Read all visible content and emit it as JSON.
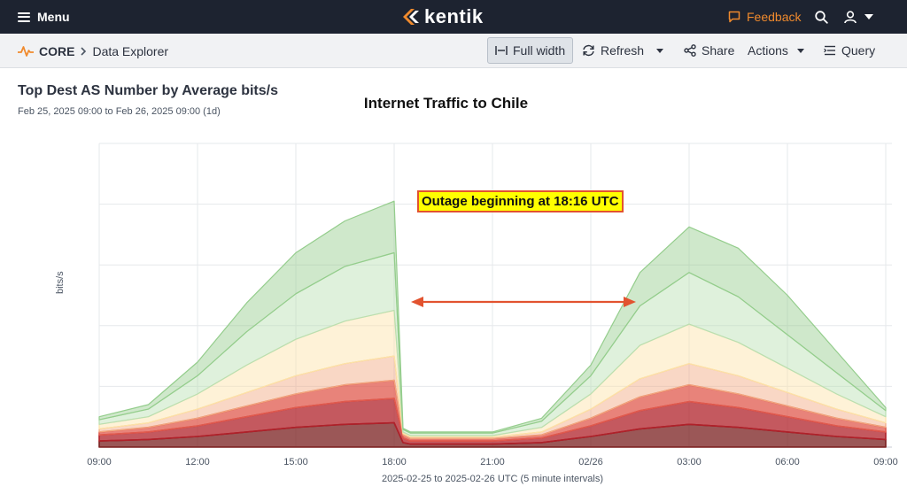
{
  "topbar": {
    "menu_label": "Menu",
    "brand": "kentik",
    "feedback_label": "Feedback",
    "icons": [
      "menu-icon",
      "kentik-logo-icon",
      "feedback-icon",
      "search-icon",
      "user-icon",
      "chevron-down-icon"
    ]
  },
  "subbar": {
    "breadcrumb_root": "CORE",
    "breadcrumb_current": "Data Explorer",
    "full_width_label": "Full width",
    "refresh_label": "Refresh",
    "share_label": "Share",
    "actions_label": "Actions",
    "query_label": "Query"
  },
  "panel": {
    "title": "Top Dest AS Number by Average bits/s",
    "time_range": "Feb 25, 2025 09:00 to Feb 26, 2025 09:00 (1d)"
  },
  "annotation": {
    "overlay_title": "Internet Traffic to Chile",
    "callout": "Outage beginning at 18:16 UTC"
  },
  "colors": {
    "topbar_bg": "#1d2330",
    "accent_orange": "#f08a2d",
    "annotation_red": "#e2532f",
    "annotation_yellow": "#ffff00"
  },
  "chart_data": {
    "type": "area",
    "title": "",
    "xlabel": "2025-02-25 to 2025-02-26 UTC (5 minute intervals)",
    "ylabel": "bits/s",
    "grid": true,
    "stacked": true,
    "x_ticks": [
      "09:00",
      "12:00",
      "15:00",
      "18:00",
      "21:00",
      "02/26",
      "03:00",
      "06:00",
      "09:00"
    ],
    "x_hours": [
      0,
      1.5,
      3,
      4.5,
      6,
      7.5,
      9,
      9.27,
      9.5,
      10.5,
      12,
      13.5,
      15,
      16.5,
      18,
      19.5,
      21,
      22.5,
      24
    ],
    "ylim": [
      0,
      100
    ],
    "series": [
      {
        "color": "#7a1f1f",
        "values": [
          2,
          2.5,
          3.5,
          5,
          6.5,
          7.5,
          8,
          1.5,
          1,
          1,
          1,
          1.5,
          3.5,
          6,
          7.5,
          6.5,
          5,
          3.5,
          2.5
        ]
      },
      {
        "color": "#b0212a",
        "values": [
          2,
          2.5,
          3.5,
          5,
          6.5,
          7.5,
          8,
          1.5,
          1,
          1,
          1,
          1.5,
          3.5,
          6,
          7.5,
          6.5,
          5,
          3.5,
          2.5
        ]
      },
      {
        "color": "#e05a4e",
        "values": [
          1,
          1.5,
          2.5,
          3.5,
          4.5,
          5.5,
          6,
          1,
          0.8,
          0.8,
          0.8,
          1,
          2.5,
          4.5,
          5.5,
          4.5,
          3.5,
          2.5,
          1.5
        ]
      },
      {
        "color": "#f2a77e",
        "values": [
          1,
          1.5,
          3,
          4.5,
          6,
          7,
          8,
          0.5,
          0.5,
          0.5,
          0.5,
          1,
          3,
          6,
          7,
          6,
          4.5,
          3,
          1.5
        ]
      },
      {
        "color": "#fde3a7",
        "values": [
          1.5,
          2,
          5,
          9,
          12,
          14,
          15,
          0.5,
          0.5,
          0.5,
          0.5,
          1.5,
          5,
          11,
          13,
          11,
          8,
          5,
          2
        ]
      },
      {
        "color": "#b9dfb1",
        "values": [
          1.5,
          2.5,
          6,
          11,
          15,
          18,
          19,
          0.8,
          0.8,
          0.8,
          0.8,
          2,
          6,
          13,
          17,
          15,
          11,
          7,
          2
        ]
      },
      {
        "color": "#94cd8c",
        "values": [
          1,
          1.5,
          4.5,
          9.5,
          13.5,
          15,
          17,
          0.4,
          0.4,
          0.4,
          0.4,
          1,
          3.5,
          11,
          15,
          16,
          13,
          7,
          1
        ]
      }
    ]
  }
}
